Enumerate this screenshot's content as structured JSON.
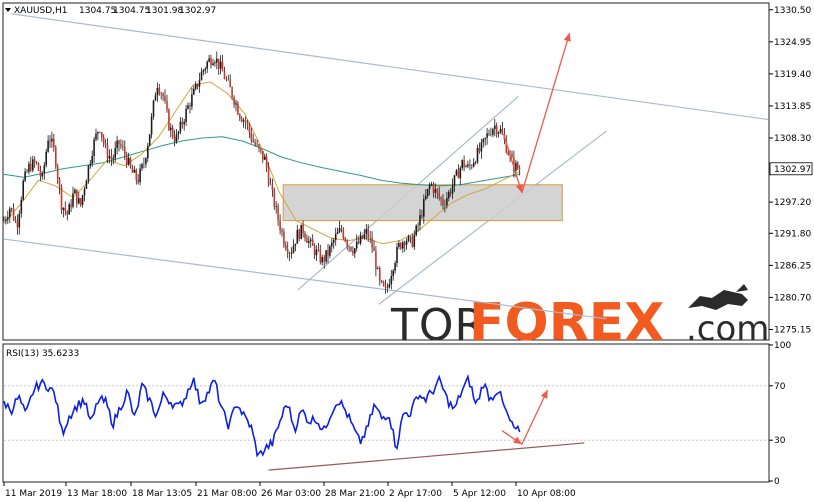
{
  "chart_data": [
    {
      "type": "candlestick",
      "title": "XAUUSD,H1",
      "ohlc_readout": [
        "1304.75",
        "1304.75",
        "1301.98",
        "1302.97"
      ],
      "current_price": 1302.97,
      "y_ticks": [
        "1330.50",
        "1324.95",
        "1319.40",
        "1313.85",
        "1308.30",
        "1302.97",
        "1297.20",
        "1291.80",
        "1286.25",
        "1280.70",
        "1275.15"
      ],
      "ylim": [
        1273.5,
        1331.5
      ],
      "x_ticks": [
        "11 Mar 2019",
        "13 Mar 18:00",
        "18 Mar 13:05",
        "21 Mar 08:00",
        "26 Mar 03:00",
        "28 Mar 21:00",
        "2 Apr 17:00",
        "5 Apr 12:00",
        "10 Apr 08:00"
      ],
      "price_path": [
        1294.0,
        1296.5,
        1293.0,
        1300.5,
        1303.5,
        1304.0,
        1301.0,
        1309.0,
        1305.5,
        1297.0,
        1295.0,
        1299.0,
        1296.5,
        1302.0,
        1307.0,
        1310.5,
        1306.0,
        1304.5,
        1307.5,
        1305.5,
        1302.5,
        1301.0,
        1304.0,
        1310.0,
        1318.0,
        1315.5,
        1310.0,
        1308.0,
        1311.0,
        1314.0,
        1316.5,
        1319.5,
        1321.5,
        1322.5,
        1320.5,
        1318.0,
        1315.5,
        1312.5,
        1311.0,
        1308.0,
        1306.0,
        1304.5,
        1299.0,
        1294.5,
        1290.5,
        1288.5,
        1291.5,
        1292.5,
        1290.0,
        1288.5,
        1287.0,
        1288.5,
        1291.0,
        1292.5,
        1290.0,
        1289.0,
        1290.5,
        1292.0,
        1289.0,
        1283.0,
        1281.5,
        1286.0,
        1289.5,
        1291.0,
        1290.0,
        1293.0,
        1297.0,
        1300.5,
        1298.5,
        1297.0,
        1299.0,
        1301.5,
        1304.0,
        1303.0,
        1305.0,
        1306.5,
        1309.0,
        1310.5,
        1309.5,
        1306.5,
        1303.5,
        1302.97
      ],
      "moving_averages": [
        {
          "color": "#2e9b8a",
          "values": [
            1302.0,
            1301.5,
            1302.2,
            1303.0,
            1303.5,
            1304.0,
            1305.0,
            1306.0,
            1307.0,
            1307.8,
            1308.3,
            1308.5,
            1307.8,
            1306.5,
            1305.0,
            1304.0,
            1303.2,
            1302.5,
            1301.8,
            1301.0,
            1300.5,
            1300.2,
            1300.0,
            1300.2,
            1300.8,
            1301.4,
            1302.0
          ]
        },
        {
          "color": "#d4a43c",
          "values": [
            1293.5,
            1297.0,
            1301.0,
            1300.0,
            1298.0,
            1301.0,
            1304.5,
            1303.5,
            1305.5,
            1308.5,
            1313.0,
            1317.5,
            1318.0,
            1316.0,
            1312.5,
            1306.5,
            1299.0,
            1294.0,
            1292.5,
            1291.0,
            1290.5,
            1291.0,
            1290.0,
            1290.5,
            1292.0,
            1294.5,
            1297.0,
            1298.5,
            1299.5,
            1301.0,
            1302.5
          ]
        }
      ],
      "trend_lines": [
        {
          "from": [
            1,
            1329.8
          ],
          "to": [
            104,
            1311.5
          ],
          "color": "#a9bccb"
        },
        {
          "from": [
            0,
            1290.8
          ],
          "to": [
            82,
            1277.0
          ],
          "color": "#a9bccb"
        },
        {
          "from": [
            40,
            1282.0
          ],
          "to": [
            70,
            1315.5
          ],
          "color": "#a9bccb"
        },
        {
          "from": [
            51,
            1279.5
          ],
          "to": [
            82,
            1309.5
          ],
          "color": "#a9bccb"
        }
      ],
      "support_zone": {
        "x": [
          38,
          76
        ],
        "y": [
          1294.0,
          1300.2
        ],
        "color": "#cccccc",
        "border": "#d99a3a"
      },
      "forecast_arrows": [
        {
          "from": [
            68,
            1309.0
          ],
          "to": [
            70.5,
            1298.8
          ],
          "color": "#ee5a4a"
        },
        {
          "from": [
            70.5,
            1298.8
          ],
          "to": [
            77,
            1326.5
          ],
          "color": "#ee5a4a"
        }
      ],
      "watermark": {
        "part1": "TOR",
        "part2": "FOREX",
        "part3": ".com"
      }
    },
    {
      "type": "line",
      "title": "RSI(13) 35.6233",
      "y_ticks": [
        "100",
        "70",
        "30",
        "0"
      ],
      "ylim": [
        0,
        100
      ],
      "levels": [
        70,
        30
      ],
      "series_color": "#0b1fe6",
      "values": [
        58,
        52,
        62,
        48,
        66,
        72,
        70,
        64,
        35,
        48,
        55,
        60,
        42,
        60,
        58,
        42,
        54,
        66,
        45,
        70,
        60,
        48,
        64,
        58,
        54,
        62,
        76,
        58,
        64,
        74,
        52,
        40,
        58,
        48,
        40,
        18,
        24,
        28,
        44,
        58,
        38,
        52,
        44,
        46,
        36,
        50,
        60,
        52,
        40,
        28,
        38,
        56,
        46,
        50,
        24,
        50,
        50,
        64,
        60,
        66,
        74,
        60,
        52,
        66,
        75,
        55,
        72,
        60,
        68,
        52,
        40,
        36
      ],
      "trend_line": {
        "from": [
          36,
          8
        ],
        "to": [
          79,
          28
        ],
        "color": "#9b5a5a"
      },
      "forecast_arrows": [
        {
          "from": [
            67.8,
            37
          ],
          "to": [
            70.5,
            27
          ],
          "color": "#ee5a4a"
        },
        {
          "from": [
            70.5,
            27
          ],
          "to": [
            74,
            67
          ],
          "color": "#ee5a4a"
        }
      ]
    }
  ]
}
